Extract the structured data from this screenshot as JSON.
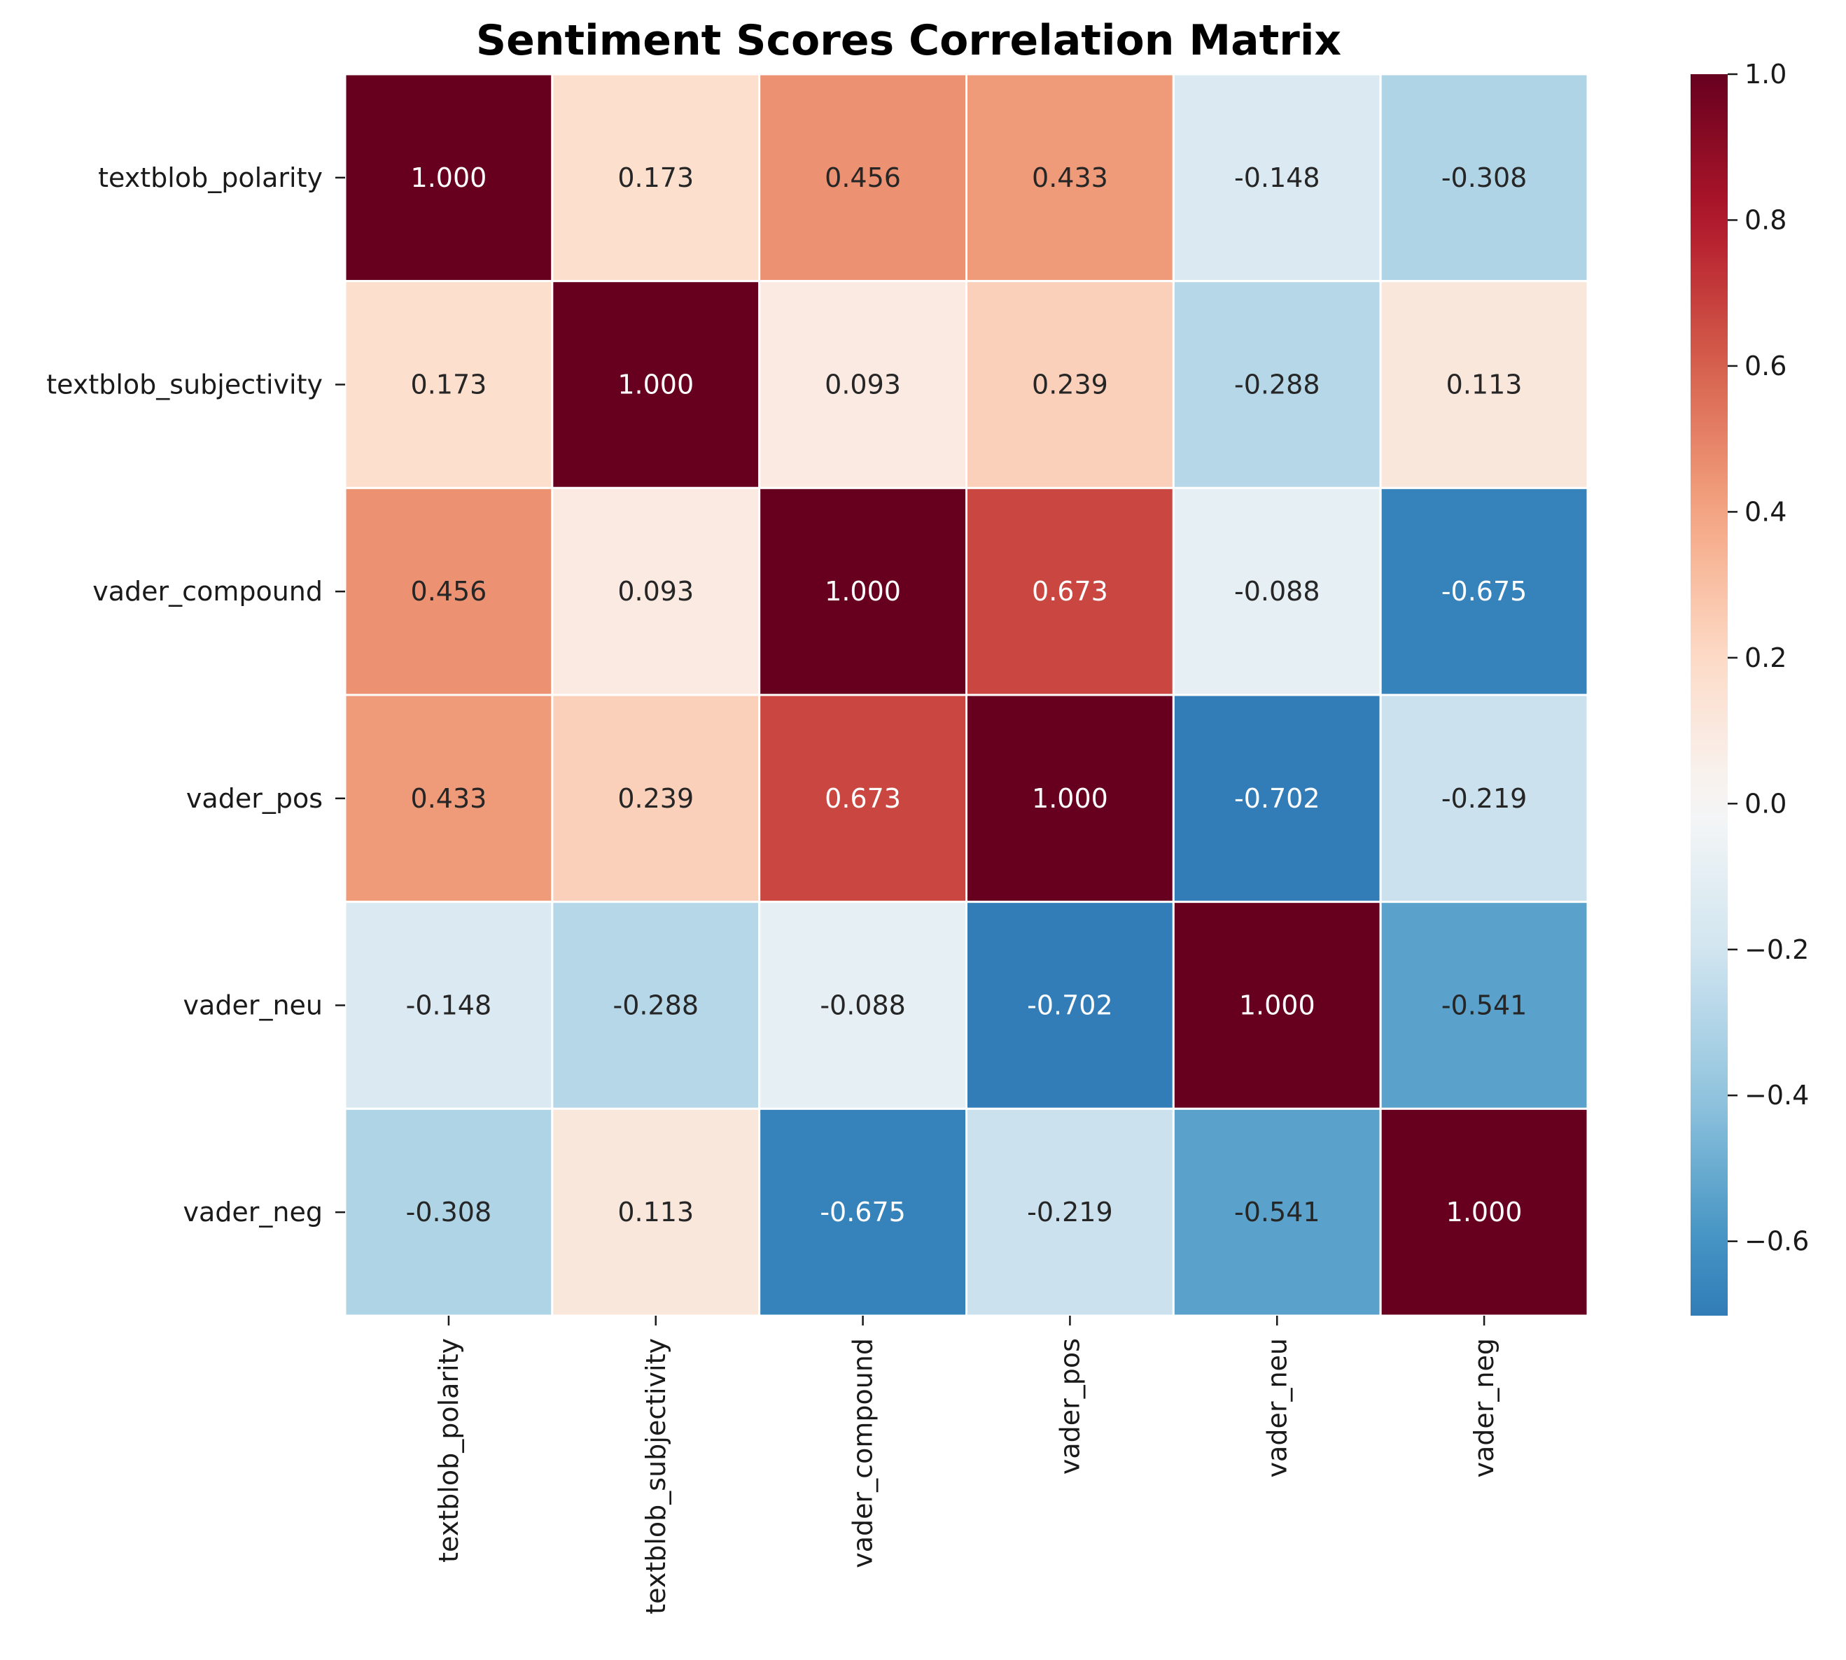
{
  "chart_data": {
    "type": "heatmap",
    "title": "Sentiment Scores Correlation Matrix",
    "row_labels": [
      "textblob_polarity",
      "textblob_subjectivity",
      "vader_compound",
      "vader_pos",
      "vader_neu",
      "vader_neg"
    ],
    "col_labels": [
      "textblob_polarity",
      "textblob_subjectivity",
      "vader_compound",
      "vader_pos",
      "vader_neu",
      "vader_neg"
    ],
    "values": [
      [
        1.0,
        0.173,
        0.456,
        0.433,
        -0.148,
        -0.308
      ],
      [
        0.173,
        1.0,
        0.093,
        0.239,
        -0.288,
        0.113
      ],
      [
        0.456,
        0.093,
        1.0,
        0.673,
        -0.088,
        -0.675
      ],
      [
        0.433,
        0.239,
        0.673,
        1.0,
        -0.702,
        -0.219
      ],
      [
        -0.148,
        -0.288,
        -0.088,
        -0.702,
        1.0,
        -0.541
      ],
      [
        -0.308,
        0.113,
        -0.675,
        -0.219,
        -0.541,
        1.0
      ]
    ],
    "value_labels": [
      [
        "1.000",
        "0.173",
        "0.456",
        "0.433",
        "-0.148",
        "-0.308"
      ],
      [
        "0.173",
        "1.000",
        "0.093",
        "0.239",
        "-0.288",
        "0.113"
      ],
      [
        "0.456",
        "0.093",
        "1.000",
        "0.673",
        "-0.088",
        "-0.675"
      ],
      [
        "0.433",
        "0.239",
        "0.673",
        "1.000",
        "-0.702",
        "-0.219"
      ],
      [
        "-0.148",
        "-0.288",
        "-0.088",
        "-0.702",
        "1.000",
        "-0.541"
      ],
      [
        "-0.308",
        "0.113",
        "-0.675",
        "-0.219",
        "-0.541",
        "1.000"
      ]
    ],
    "colormap": "RdBu_r",
    "color_range": [
      -1.0,
      1.0
    ],
    "colorbar": {
      "range": [
        -0.702,
        1.0
      ],
      "ticks": [
        1.0,
        0.8,
        0.6,
        0.4,
        0.2,
        0.0,
        -0.2,
        -0.4,
        -0.6
      ],
      "tick_labels": [
        "1.0",
        "0.8",
        "0.6",
        "0.4",
        "0.2",
        "0.0",
        "−0.2",
        "−0.4",
        "−0.6"
      ]
    },
    "colors": {
      "cell_border": "#ffffff",
      "text_dark": "#262626",
      "text_light": "#ffffff"
    }
  }
}
